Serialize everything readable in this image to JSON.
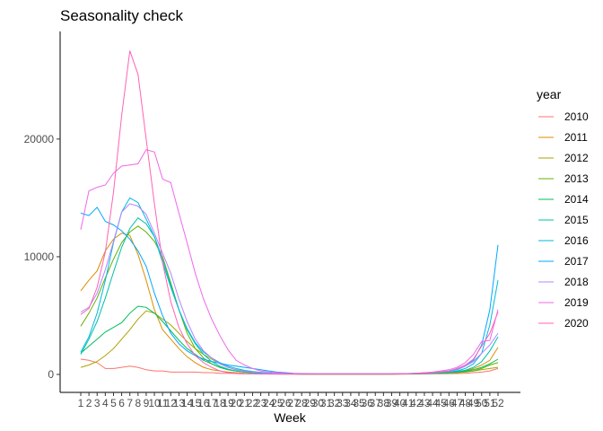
{
  "chart_data": {
    "type": "line",
    "title": "Seasonality check",
    "xlabel": "Week",
    "ylabel": "",
    "x": [
      1,
      2,
      3,
      4,
      5,
      6,
      7,
      8,
      9,
      10,
      11,
      12,
      13,
      14,
      15,
      16,
      17,
      18,
      19,
      20,
      21,
      22,
      23,
      24,
      25,
      26,
      27,
      28,
      29,
      30,
      31,
      32,
      33,
      34,
      35,
      36,
      37,
      38,
      39,
      40,
      41,
      42,
      43,
      44,
      45,
      46,
      47,
      48,
      49,
      50,
      51,
      52
    ],
    "xlim": [
      1,
      52
    ],
    "ylim": [
      -1000,
      28500
    ],
    "yticks": [
      0,
      10000,
      20000
    ],
    "grid": false,
    "legend_title": "year",
    "legend_position": "right",
    "series": [
      {
        "name": "2010",
        "color": "#F8766D",
        "values": [
          1300,
          1200,
          1000,
          500,
          500,
          600,
          700,
          600,
          400,
          300,
          300,
          200,
          200,
          200,
          200,
          150,
          150,
          100,
          100,
          80,
          60,
          50,
          50,
          40,
          30,
          30,
          30,
          20,
          20,
          20,
          20,
          20,
          20,
          20,
          20,
          20,
          20,
          20,
          20,
          20,
          30,
          30,
          40,
          50,
          60,
          70,
          80,
          100,
          150,
          200,
          300,
          500
        ]
      },
      {
        "name": "2011",
        "color": "#DB8E00",
        "values": [
          7100,
          8000,
          8800,
          10500,
          11500,
          12000,
          11800,
          10200,
          8000,
          5500,
          3800,
          3000,
          2200,
          1500,
          1000,
          600,
          400,
          300,
          200,
          150,
          100,
          80,
          60,
          50,
          40,
          30,
          30,
          30,
          30,
          30,
          30,
          30,
          30,
          30,
          30,
          30,
          30,
          30,
          40,
          50,
          60,
          70,
          80,
          100,
          120,
          150,
          200,
          300,
          500,
          800,
          1200,
          2300
        ]
      },
      {
        "name": "2012",
        "color": "#AEA200",
        "values": [
          600,
          800,
          1100,
          1600,
          2200,
          3000,
          3800,
          4700,
          5400,
          5200,
          4700,
          4200,
          3500,
          2800,
          2200,
          1700,
          1300,
          900,
          600,
          400,
          300,
          200,
          150,
          100,
          80,
          60,
          50,
          40,
          40,
          40,
          40,
          40,
          40,
          40,
          40,
          40,
          40,
          40,
          40,
          50,
          60,
          70,
          80,
          100,
          120,
          150,
          200,
          250,
          300,
          400,
          500,
          600
        ]
      },
      {
        "name": "2013",
        "color": "#64B200",
        "values": [
          4100,
          5200,
          6500,
          8200,
          9800,
          11200,
          12100,
          12600,
          12100,
          11300,
          10000,
          7800,
          5500,
          3500,
          2200,
          1400,
          900,
          600,
          400,
          300,
          200,
          150,
          100,
          80,
          60,
          50,
          40,
          30,
          30,
          30,
          30,
          30,
          30,
          30,
          30,
          30,
          30,
          30,
          30,
          40,
          50,
          60,
          70,
          80,
          100,
          120,
          150,
          200,
          300,
          500,
          800,
          1000
        ]
      },
      {
        "name": "2014",
        "color": "#00BD5C",
        "values": [
          1800,
          2400,
          3000,
          3600,
          4000,
          4400,
          5200,
          5800,
          5700,
          5200,
          4500,
          3700,
          2900,
          2200,
          1700,
          1200,
          900,
          600,
          400,
          300,
          200,
          150,
          100,
          80,
          60,
          50,
          40,
          30,
          30,
          30,
          30,
          30,
          30,
          30,
          30,
          30,
          30,
          30,
          30,
          40,
          50,
          60,
          80,
          100,
          130,
          170,
          220,
          300,
          400,
          600,
          900,
          1300
        ]
      },
      {
        "name": "2015",
        "color": "#00C1A7",
        "values": [
          1700,
          3000,
          4500,
          6500,
          8700,
          10800,
          12400,
          13300,
          12800,
          11700,
          9500,
          7400,
          5500,
          3800,
          2600,
          1700,
          1100,
          700,
          450,
          300,
          200,
          150,
          100,
          80,
          60,
          50,
          40,
          30,
          30,
          30,
          30,
          30,
          30,
          30,
          30,
          30,
          30,
          30,
          30,
          40,
          50,
          60,
          80,
          100,
          130,
          180,
          250,
          350,
          600,
          1100,
          2000,
          3200
        ]
      },
      {
        "name": "2016",
        "color": "#00BADE",
        "values": [
          1900,
          3200,
          5200,
          8000,
          11200,
          13800,
          15000,
          14600,
          13200,
          11700,
          9800,
          7600,
          5500,
          3900,
          2700,
          1900,
          1400,
          1000,
          700,
          500,
          350,
          250,
          180,
          120,
          80,
          60,
          50,
          40,
          40,
          40,
          40,
          40,
          40,
          40,
          40,
          40,
          40,
          40,
          40,
          50,
          70,
          90,
          110,
          140,
          180,
          220,
          300,
          500,
          900,
          1800,
          4200,
          8000
        ]
      },
      {
        "name": "2017",
        "color": "#00A6FF",
        "values": [
          13700,
          13500,
          14200,
          13000,
          12700,
          12200,
          11500,
          10500,
          9200,
          6900,
          5000,
          3500,
          2600,
          2000,
          1600,
          1300,
          1100,
          950,
          800,
          700,
          600,
          500,
          400,
          300,
          200,
          150,
          100,
          80,
          70,
          60,
          50,
          50,
          50,
          50,
          50,
          50,
          50,
          50,
          50,
          60,
          80,
          100,
          130,
          170,
          220,
          300,
          400,
          700,
          1200,
          2500,
          5500,
          11000
        ]
      },
      {
        "name": "2018",
        "color": "#B385FF",
        "values": [
          5300,
          5700,
          6900,
          8900,
          11300,
          13800,
          14500,
          14300,
          13600,
          12000,
          10300,
          8600,
          6400,
          4500,
          3000,
          2000,
          1400,
          900,
          600,
          400,
          300,
          200,
          150,
          100,
          80,
          60,
          50,
          40,
          40,
          40,
          40,
          40,
          40,
          40,
          40,
          40,
          40,
          40,
          50,
          60,
          80,
          100,
          130,
          170,
          220,
          300,
          450,
          700,
          1100,
          1800,
          2500,
          3500
        ]
      },
      {
        "name": "2019",
        "color": "#EF67EB",
        "values": [
          12300,
          15600,
          15900,
          16100,
          17100,
          17700,
          17800,
          17900,
          19100,
          18900,
          16600,
          16300,
          13700,
          11200,
          8600,
          6400,
          4700,
          3300,
          2100,
          1200,
          800,
          500,
          300,
          200,
          150,
          100,
          80,
          60,
          50,
          50,
          50,
          50,
          50,
          50,
          50,
          50,
          50,
          50,
          50,
          60,
          80,
          100,
          150,
          200,
          300,
          400,
          600,
          1000,
          1700,
          2800,
          2900,
          5500
        ]
      },
      {
        "name": "2020",
        "color": "#FF63B6",
        "values": [
          5100,
          5600,
          7400,
          10400,
          15500,
          22000,
          27500,
          25500,
          20000,
          14500,
          9500,
          6200,
          4000,
          2600,
          1600,
          1000,
          600,
          300,
          150,
          80,
          60,
          50,
          40,
          30,
          30,
          30,
          30,
          30,
          30,
          30,
          30,
          30,
          30,
          30,
          30,
          30,
          30,
          30,
          40,
          50,
          60,
          80,
          100,
          150,
          200,
          300,
          500,
          800,
          1300,
          2400,
          3500,
          5300
        ]
      }
    ]
  }
}
